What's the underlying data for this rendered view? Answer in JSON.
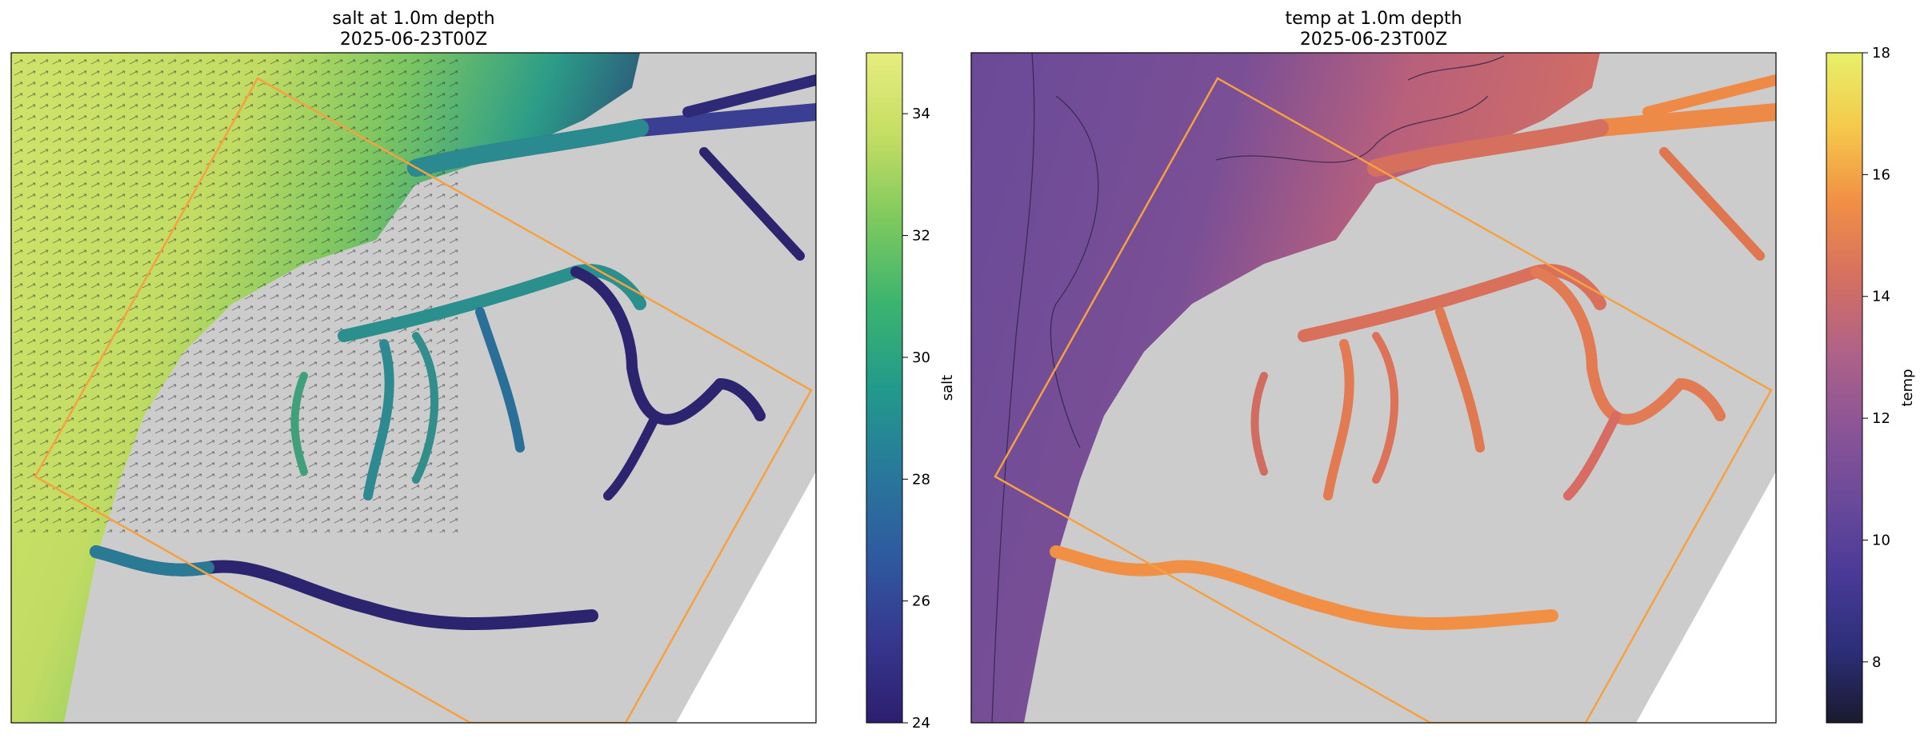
{
  "chart_data": [
    {
      "type": "heatmap",
      "variable": "salt",
      "title": "salt at 1.0m depth",
      "subtitle": "2025-06-23T00Z",
      "colorbar": {
        "label": "salt",
        "range": [
          24,
          35
        ],
        "ticks": [
          "24",
          "26",
          "28",
          "30",
          "32",
          "34"
        ],
        "colormap": [
          "#2d1e6e",
          "#36388f",
          "#2f5aa0",
          "#28799b",
          "#229a8b",
          "#3bb46f",
          "#7dc95e",
          "#c4dd62",
          "#e6ed7e"
        ]
      },
      "overlays": [
        "velocity vectors",
        "land mask",
        "domain outline"
      ],
      "outline_color": "#f5a142",
      "land_color": "#cccccc"
    },
    {
      "type": "heatmap",
      "variable": "temp",
      "title": "temp at 1.0m depth",
      "subtitle": "2025-06-23T00Z",
      "colorbar": {
        "label": "temp",
        "range": [
          7,
          18
        ],
        "ticks": [
          "8",
          "10",
          "12",
          "14",
          "16",
          "18"
        ],
        "colormap": [
          "#1a1a2e",
          "#2c2f7a",
          "#4a3a98",
          "#6b4a9a",
          "#8c5596",
          "#b06287",
          "#d67060",
          "#f18f45",
          "#f5c94a",
          "#e6f06a"
        ]
      },
      "overlays": [
        "contour lines",
        "land mask",
        "domain outline"
      ],
      "outline_color": "#f5a142",
      "land_color": "#cccccc"
    }
  ]
}
